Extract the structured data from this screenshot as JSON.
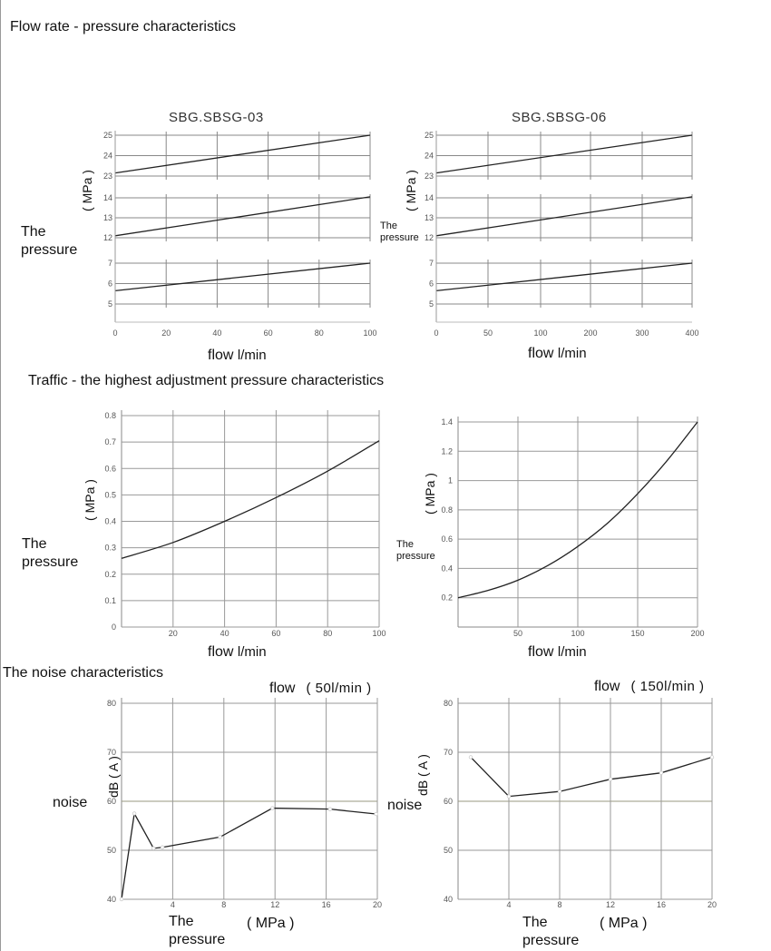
{
  "headings": {
    "flow_pressure": "Flow rate - pressure characteristics",
    "traffic": "Traffic - the highest adjustment pressure characteristics",
    "noise": "The noise characteristics"
  },
  "labels": {
    "pressure_line1": "The",
    "pressure_line2": "pressure",
    "pressure_inline": "The pressure",
    "mpa_vertical": "( MPa )",
    "flow": "flow",
    "flow_unit": "l/min",
    "noise": "noise",
    "db_unit": "dB ( A )",
    "mpa_unit": "( MPa )",
    "flow_50": "( 50l/min )",
    "flow_150": "( 150l/min )"
  },
  "chart_data": [
    {
      "id": "fp03",
      "type": "line",
      "title": "SBG.SBSG-03",
      "xlabel": "flow l/min",
      "ylabel": "The pressure ( MPa )",
      "xlim": [
        0,
        100
      ],
      "x_ticks": [
        0,
        20,
        40,
        60,
        80,
        100
      ],
      "grid": true,
      "panels": [
        {
          "ylim": [
            5,
            7
          ],
          "y_ticks": [
            5,
            6,
            7
          ],
          "x": [
            0,
            100
          ],
          "y": [
            5.65,
            7.0
          ]
        },
        {
          "ylim": [
            12,
            14
          ],
          "y_ticks": [
            12,
            13,
            14
          ],
          "x": [
            0,
            100
          ],
          "y": [
            12.1,
            14.05
          ]
        },
        {
          "ylim": [
            23,
            25
          ],
          "y_ticks": [
            23,
            24,
            25
          ],
          "x": [
            0,
            100
          ],
          "y": [
            23.15,
            25.0
          ]
        }
      ]
    },
    {
      "id": "fp06",
      "type": "line",
      "title": "SBG.SBSG-06",
      "xlabel": "flow l/min",
      "ylabel": "The pressure ( MPa )",
      "xlim": [
        0,
        400
      ],
      "x_ticks": [
        0,
        50,
        100,
        200,
        300,
        400
      ],
      "grid": true,
      "panels": [
        {
          "ylim": [
            5,
            7
          ],
          "y_ticks": [
            5,
            6,
            7
          ],
          "x": [
            0,
            400
          ],
          "y": [
            5.65,
            7.0
          ]
        },
        {
          "ylim": [
            12,
            14
          ],
          "y_ticks": [
            12,
            13,
            14
          ],
          "x": [
            0,
            400
          ],
          "y": [
            12.1,
            14.05
          ]
        },
        {
          "ylim": [
            23,
            25
          ],
          "y_ticks": [
            23,
            24,
            25
          ],
          "x": [
            0,
            400
          ],
          "y": [
            23.15,
            25.0
          ]
        }
      ]
    },
    {
      "id": "tr1",
      "type": "line",
      "xlabel": "flow l/min",
      "ylabel": "The pressure ( MPa )",
      "xlim": [
        0,
        100
      ],
      "ylim": [
        0,
        0.8
      ],
      "x_ticks": [
        20,
        40,
        60,
        80,
        100
      ],
      "y_ticks": [
        0,
        0.1,
        0.2,
        0.3,
        0.4,
        0.5,
        0.6,
        0.7,
        0.8
      ],
      "grid": true,
      "x": [
        0,
        20,
        40,
        60,
        80,
        100
      ],
      "y": [
        0.26,
        0.32,
        0.4,
        0.49,
        0.59,
        0.705
      ]
    },
    {
      "id": "tr2",
      "type": "line",
      "xlabel": "flow l/min",
      "ylabel": "The pressure ( MPa )",
      "xlim": [
        0,
        200
      ],
      "ylim": [
        0,
        1.4
      ],
      "x_ticks": [
        50,
        100,
        150,
        200
      ],
      "y_ticks": [
        0.2,
        0.4,
        0.6,
        0.8,
        1.0,
        1.2,
        1.4
      ],
      "grid": true,
      "x": [
        0,
        25,
        50,
        75,
        100,
        125,
        150,
        175,
        200
      ],
      "y": [
        0.2,
        0.25,
        0.32,
        0.42,
        0.55,
        0.71,
        0.91,
        1.14,
        1.4
      ]
    },
    {
      "id": "ns1",
      "type": "line",
      "xlabel": "The pressure ( MPa )",
      "ylabel": "noise dB ( A )",
      "xlim": [
        0,
        20
      ],
      "ylim": [
        40,
        80
      ],
      "x_ticks": [
        4,
        8,
        12,
        16,
        20
      ],
      "y_ticks": [
        40,
        50,
        60,
        70,
        80
      ],
      "grid": true,
      "x": [
        0,
        1,
        2.5,
        3.2,
        7.7,
        11.8,
        16.3,
        19.9
      ],
      "y": [
        40,
        57.5,
        50.4,
        50.6,
        52.7,
        58.6,
        58.4,
        57.4
      ]
    },
    {
      "id": "ns2",
      "type": "line",
      "xlabel": "The pressure ( MPa )",
      "ylabel": "noise dB ( A )",
      "xlim": [
        0,
        20
      ],
      "ylim": [
        40,
        80
      ],
      "x_ticks": [
        4,
        8,
        12,
        16,
        20
      ],
      "y_ticks": [
        40,
        50,
        60,
        70,
        80
      ],
      "grid": true,
      "x": [
        1,
        4,
        8,
        12,
        16,
        20
      ],
      "y": [
        69,
        61,
        62,
        64.5,
        65.8,
        69
      ]
    }
  ]
}
